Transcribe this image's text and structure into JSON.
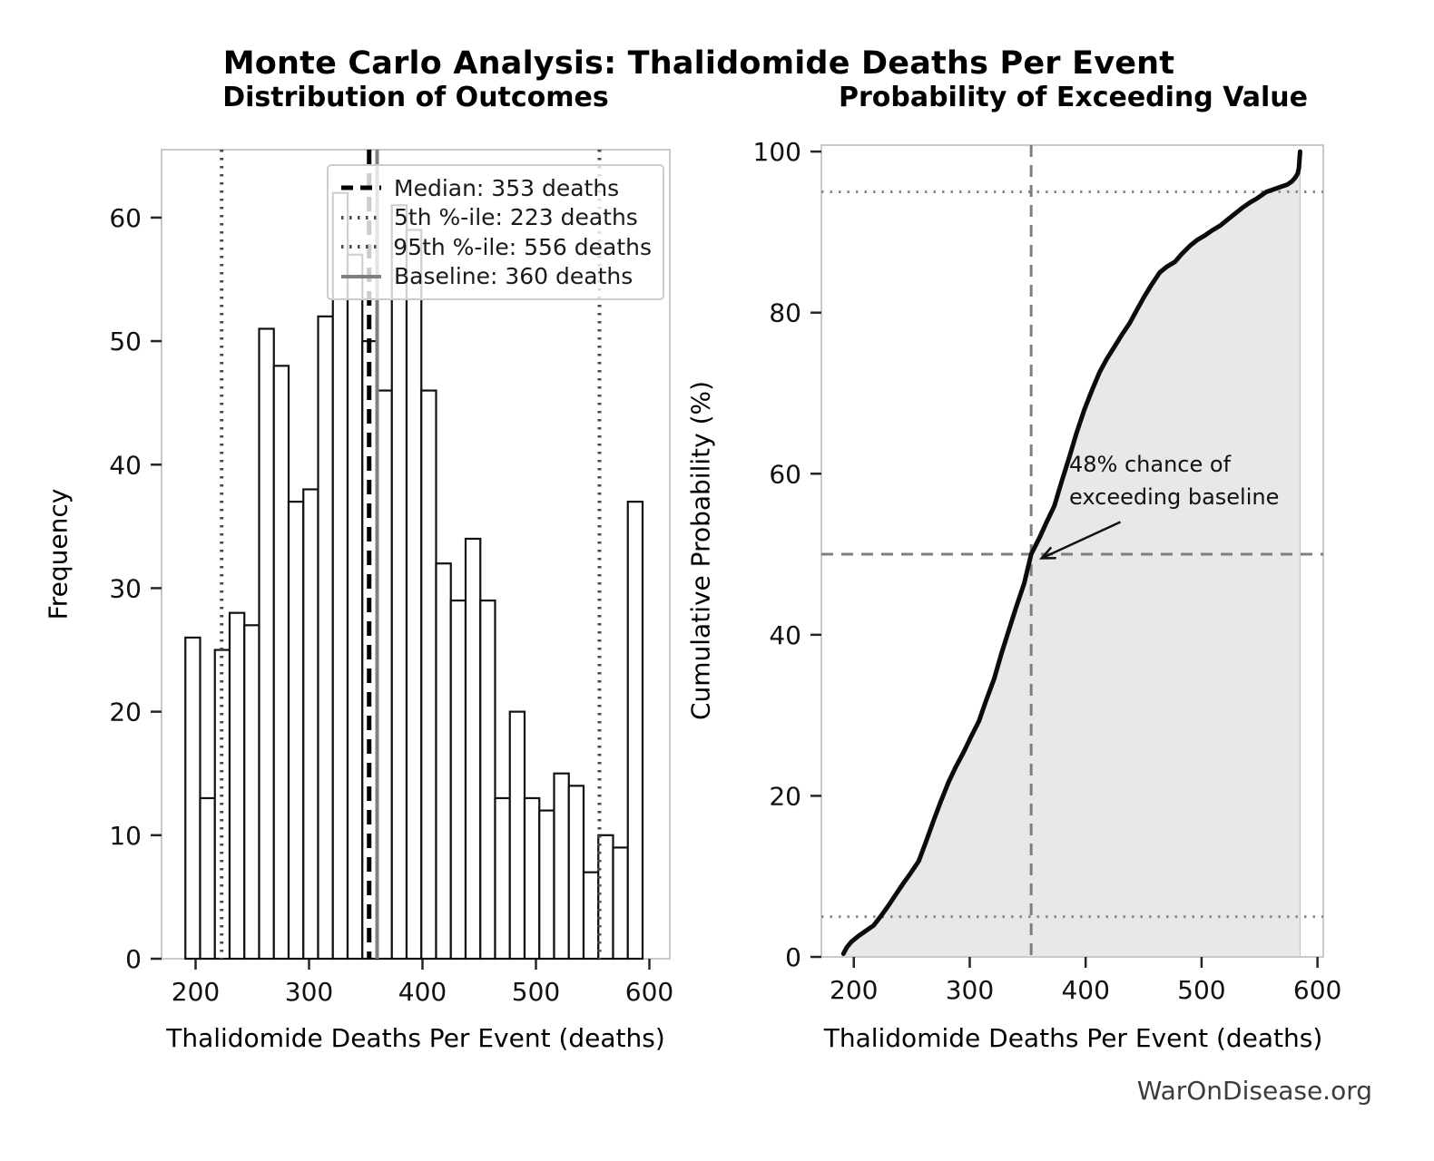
{
  "figure": {
    "title": "Monte Carlo Analysis: Thalidomide Deaths Per Event",
    "source": "WarOnDisease.org",
    "background": "#ffffff",
    "spine_color": "#c9c9c9",
    "tick_color": "#262626",
    "text_color": "#111111"
  },
  "chart_data": [
    {
      "type": "bar",
      "role": "histogram",
      "title": "Distribution of Outcomes",
      "xlabel": "Thalidomide Deaths Per Event (deaths)",
      "ylabel": "Frequency",
      "bin_start": 191,
      "bin_width": 13,
      "frequencies": [
        26,
        13,
        25,
        28,
        27,
        51,
        48,
        37,
        38,
        52,
        62,
        57,
        50,
        46,
        61,
        59,
        46,
        32,
        29,
        34,
        29,
        13,
        20,
        13,
        12,
        15,
        14,
        7,
        10,
        9,
        37
      ],
      "total_samples": 1000,
      "xlim": [
        170,
        618
      ],
      "ylim": [
        0,
        65.5
      ],
      "xticks": [
        200,
        300,
        400,
        500,
        600
      ],
      "yticks": [
        0,
        10,
        20,
        30,
        40,
        50,
        60
      ],
      "grid": false,
      "bar_fill": "#ffffff",
      "bar_edge": "#111111",
      "legend_position": "upper right",
      "ref_lines": [
        {
          "id": "median",
          "value": 353,
          "style": "dashed",
          "color": "#000000",
          "width": 5,
          "label": "Median: 353 deaths"
        },
        {
          "id": "p5",
          "value": 223,
          "style": "dotted",
          "color": "#4a4a4a",
          "width": 4,
          "label": "5th %-ile: 223 deaths"
        },
        {
          "id": "p95",
          "value": 556,
          "style": "dotted",
          "color": "#4a4a4a",
          "width": 4,
          "label": "95th %-ile: 556 deaths"
        },
        {
          "id": "baseline",
          "value": 360,
          "style": "solid",
          "color": "#7f7f7f",
          "width": 4,
          "label": "Baseline: 360 deaths"
        }
      ]
    },
    {
      "type": "line",
      "role": "cdf",
      "title": "Probability of Exceeding Value",
      "xlabel": "Thalidomide Deaths Per Event (deaths)",
      "ylabel": "Cumulative Probability (%)",
      "xlim": [
        172,
        605
      ],
      "ylim": [
        0,
        100.8
      ],
      "xticks": [
        200,
        300,
        400,
        500,
        600
      ],
      "yticks": [
        0,
        20,
        40,
        60,
        80,
        100
      ],
      "grid": false,
      "line_color": "#0b0b0b",
      "fill_color": "#e8e8e8",
      "fill_edge": "#c8c8c8",
      "hlines_dotted": {
        "values": [
          5,
          95
        ],
        "color": "#8a8a8a"
      },
      "crosshair": {
        "x": 353,
        "y": 50,
        "color": "#7f7f7f",
        "style": "dashed"
      },
      "series": [
        {
          "name": "Empirical CDF",
          "points": [
            [
              191,
              0.4
            ],
            [
              194,
              1.2
            ],
            [
              198,
              1.9
            ],
            [
              204,
              2.6
            ],
            [
              210,
              3.2
            ],
            [
              217,
              3.9
            ],
            [
              223,
              5.0
            ],
            [
              230,
              6.4
            ],
            [
              236,
              7.7
            ],
            [
              243,
              9.2
            ],
            [
              249,
              10.4
            ],
            [
              256,
              11.9
            ],
            [
              262,
              14.2
            ],
            [
              269,
              17.0
            ],
            [
              275,
              19.3
            ],
            [
              282,
              21.8
            ],
            [
              288,
              23.6
            ],
            [
              295,
              25.5
            ],
            [
              301,
              27.3
            ],
            [
              308,
              29.3
            ],
            [
              314,
              31.8
            ],
            [
              321,
              34.5
            ],
            [
              327,
              37.5
            ],
            [
              334,
              40.7
            ],
            [
              340,
              43.4
            ],
            [
              347,
              46.4
            ],
            [
              353,
              50.0
            ],
            [
              360,
              52.0
            ],
            [
              366,
              53.9
            ],
            [
              373,
              56.0
            ],
            [
              379,
              58.9
            ],
            [
              386,
              62.1
            ],
            [
              392,
              65.0
            ],
            [
              399,
              68.0
            ],
            [
              405,
              70.2
            ],
            [
              412,
              72.6
            ],
            [
              418,
              74.2
            ],
            [
              425,
              75.8
            ],
            [
              431,
              77.2
            ],
            [
              438,
              78.7
            ],
            [
              444,
              80.3
            ],
            [
              451,
              82.1
            ],
            [
              457,
              83.5
            ],
            [
              464,
              85.0
            ],
            [
              470,
              85.7
            ],
            [
              477,
              86.3
            ],
            [
              483,
              87.3
            ],
            [
              490,
              88.3
            ],
            [
              496,
              89.0
            ],
            [
              503,
              89.6
            ],
            [
              509,
              90.2
            ],
            [
              516,
              90.8
            ],
            [
              522,
              91.5
            ],
            [
              529,
              92.3
            ],
            [
              535,
              93.0
            ],
            [
              542,
              93.7
            ],
            [
              548,
              94.2
            ],
            [
              556,
              95.0
            ],
            [
              562,
              95.3
            ],
            [
              568,
              95.6
            ],
            [
              574,
              95.9
            ],
            [
              578,
              96.3
            ],
            [
              581,
              96.8
            ],
            [
              583,
              97.3
            ],
            [
              584,
              98.0
            ],
            [
              585,
              100.0
            ]
          ]
        }
      ],
      "annotation": {
        "text": "48% chance of\nexceeding baseline",
        "arrow_from": [
          430,
          54
        ],
        "arrow_to": [
          362,
          49.5
        ],
        "arrow_color": "#111111"
      }
    }
  ]
}
